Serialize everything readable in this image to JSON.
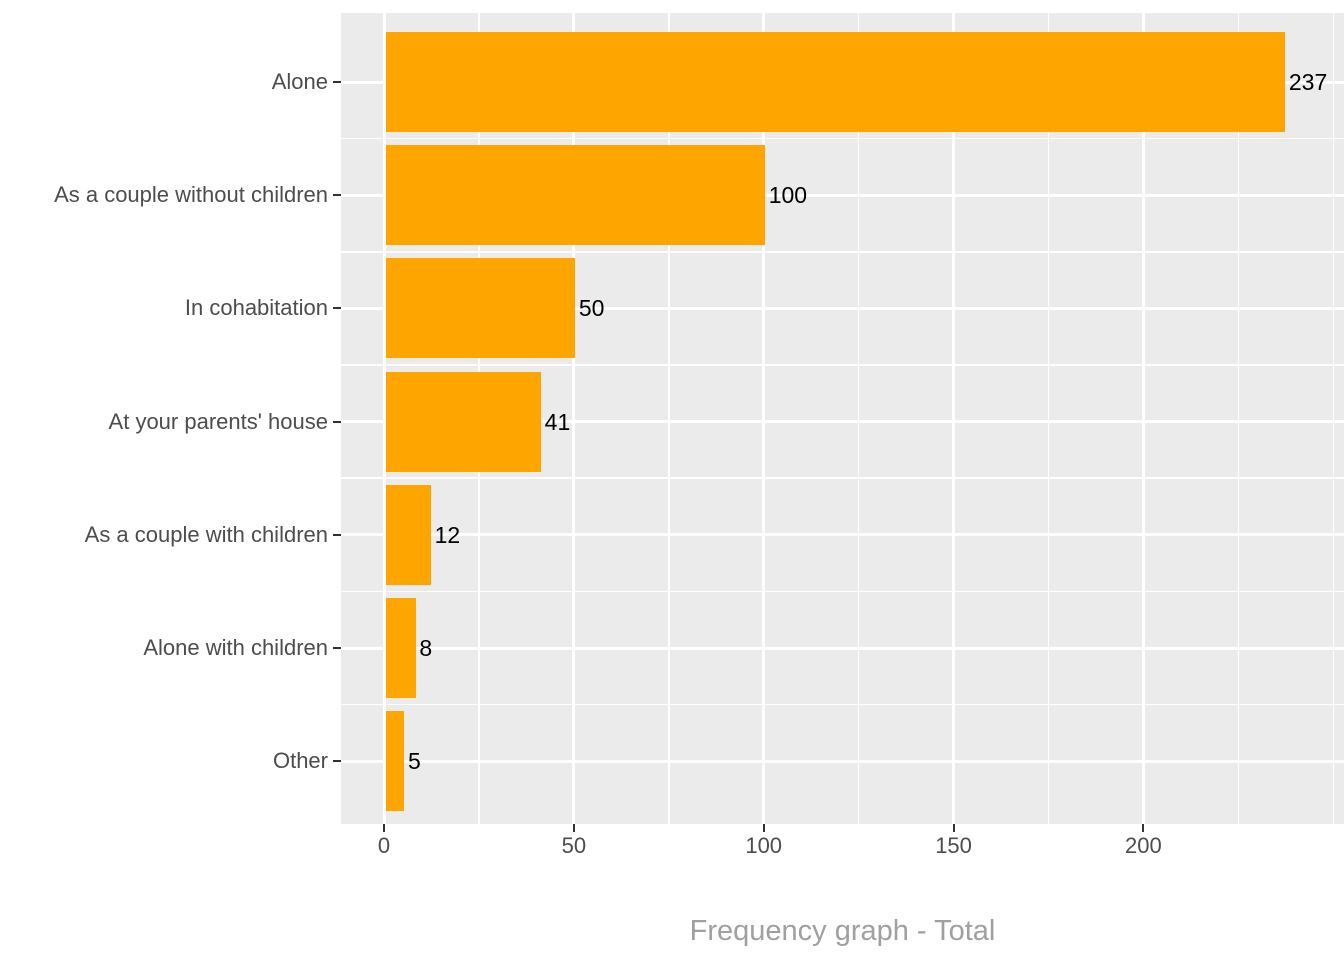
{
  "chart_data": {
    "type": "bar",
    "orientation": "horizontal",
    "title": "",
    "xlabel": "Frequency graph - Total",
    "ylabel": "",
    "categories": [
      "Alone",
      "As a couple without children",
      "In cohabitation",
      "At your parents' house",
      "As a couple with children",
      "Alone with children",
      "Other"
    ],
    "values": [
      237,
      100,
      50,
      41,
      12,
      8,
      5
    ],
    "value_labels": [
      "237",
      "100",
      "50",
      "41",
      "12",
      "8",
      "5"
    ],
    "x_ticks": [
      0,
      50,
      100,
      150,
      200
    ],
    "x_tick_labels": [
      "0",
      "50",
      "100",
      "150",
      "200"
    ],
    "x_minor_ticks": [
      25,
      75,
      125,
      175,
      225,
      250
    ],
    "xlim": [
      0,
      252
    ],
    "grid": "major-and-minor, white on gray panel",
    "legend": false,
    "colors": {
      "bar_fill": "#FFA500",
      "panel_background": "#EBEBEB",
      "gridline": "#FFFFFF",
      "axis_text": "#4D4D4D",
      "tick_mark": "#333333",
      "value_label_text": "#000000",
      "axis_title_text": "#A0A0A0"
    }
  }
}
